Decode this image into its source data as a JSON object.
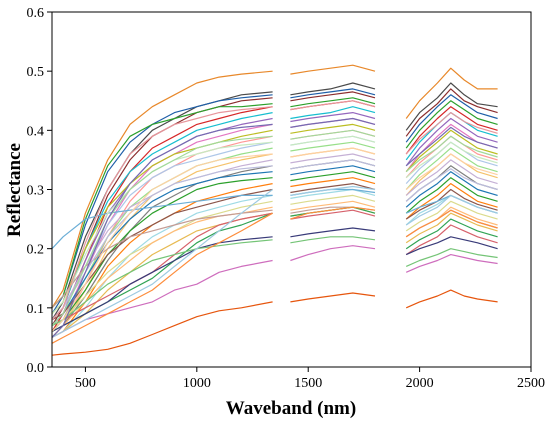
{
  "chart_data": {
    "type": "line",
    "title": "",
    "xlabel": "Waveband (nm)",
    "ylabel": "Reflectance",
    "xlim": [
      350,
      2500
    ],
    "ylim": [
      0.0,
      0.6
    ],
    "xticks": [
      500,
      1000,
      1500,
      2000,
      2500
    ],
    "yticks": [
      "0.0",
      "0.1",
      "0.2",
      "0.3",
      "0.4",
      "0.5",
      "0.6"
    ],
    "grid": false,
    "legend": "none",
    "x": [
      350,
      400,
      500,
      600,
      700,
      800,
      900,
      1000,
      1100,
      1200,
      1340,
      1420,
      1500,
      1600,
      1700,
      1800,
      1940,
      2000,
      2080,
      2140,
      2200,
      2260,
      2350
    ],
    "segments": [
      [
        350,
        1340
      ],
      [
        1420,
        1800
      ],
      [
        1940,
        2350
      ]
    ],
    "colors": [
      "#e8882a",
      "#4a4a4a",
      "#8b2d2d",
      "#1f5fa8",
      "#2ca02c",
      "#d62728",
      "#17becf",
      "#9467bd",
      "#e377c2",
      "#bcbd22",
      "#ff9896",
      "#aec7e8",
      "#98df8a",
      "#f5c26b",
      "#c5b0d5",
      "#7f7f7f",
      "#1f77b4",
      "#2ca02c",
      "#ff7f0e",
      "#8c564b",
      "#9edae5",
      "#dbdb8d",
      "#ffbb78",
      "#c49c94",
      "#e7ba52",
      "#6baed6",
      "#31a354",
      "#d6616b",
      "#ce6dbd",
      "#393b79",
      "#e6550d",
      "#74c476",
      "#fd8d3c",
      "#9ecae1",
      "#bcbddc",
      "#fdd0a2",
      "#c7e9c0",
      "#a1d99b",
      "#756bb1",
      "#e7969c"
    ],
    "series": [
      {
        "values": [
          0.1,
          0.13,
          0.26,
          0.35,
          0.41,
          0.44,
          0.46,
          0.48,
          0.49,
          0.495,
          0.5,
          0.495,
          0.5,
          0.505,
          0.51,
          0.5,
          0.42,
          0.45,
          0.48,
          0.505,
          0.485,
          0.47,
          0.47
        ]
      },
      {
        "values": [
          0.08,
          0.11,
          0.22,
          0.3,
          0.36,
          0.4,
          0.42,
          0.44,
          0.45,
          0.46,
          0.465,
          0.46,
          0.465,
          0.47,
          0.48,
          0.47,
          0.4,
          0.43,
          0.455,
          0.48,
          0.46,
          0.445,
          0.44
        ]
      },
      {
        "values": [
          0.07,
          0.1,
          0.2,
          0.29,
          0.35,
          0.39,
          0.41,
          0.43,
          0.44,
          0.45,
          0.455,
          0.45,
          0.455,
          0.46,
          0.465,
          0.455,
          0.39,
          0.42,
          0.445,
          0.47,
          0.45,
          0.44,
          0.43
        ]
      },
      {
        "values": [
          0.09,
          0.12,
          0.24,
          0.33,
          0.38,
          0.41,
          0.43,
          0.44,
          0.45,
          0.455,
          0.46,
          0.455,
          0.46,
          0.465,
          0.47,
          0.46,
          0.38,
          0.41,
          0.44,
          0.46,
          0.445,
          0.43,
          0.42
        ]
      },
      {
        "values": [
          0.1,
          0.12,
          0.25,
          0.34,
          0.39,
          0.41,
          0.42,
          0.43,
          0.44,
          0.44,
          0.445,
          0.44,
          0.445,
          0.45,
          0.455,
          0.445,
          0.37,
          0.4,
          0.43,
          0.45,
          0.435,
          0.42,
          0.41
        ]
      },
      {
        "values": [
          0.06,
          0.09,
          0.18,
          0.27,
          0.33,
          0.37,
          0.39,
          0.41,
          0.42,
          0.43,
          0.44,
          0.435,
          0.44,
          0.445,
          0.45,
          0.44,
          0.36,
          0.39,
          0.42,
          0.44,
          0.425,
          0.41,
          0.4
        ]
      },
      {
        "values": [
          0.08,
          0.1,
          0.2,
          0.28,
          0.33,
          0.36,
          0.38,
          0.4,
          0.41,
          0.42,
          0.43,
          0.42,
          0.425,
          0.43,
          0.44,
          0.43,
          0.35,
          0.38,
          0.41,
          0.43,
          0.415,
          0.4,
          0.39
        ]
      },
      {
        "values": [
          0.07,
          0.09,
          0.18,
          0.26,
          0.31,
          0.35,
          0.37,
          0.39,
          0.4,
          0.41,
          0.42,
          0.415,
          0.42,
          0.425,
          0.43,
          0.42,
          0.34,
          0.37,
          0.4,
          0.42,
          0.405,
          0.39,
          0.38
        ]
      },
      {
        "values": [
          0.06,
          0.08,
          0.16,
          0.24,
          0.3,
          0.34,
          0.36,
          0.38,
          0.39,
          0.4,
          0.41,
          0.405,
          0.41,
          0.415,
          0.42,
          0.41,
          0.33,
          0.36,
          0.39,
          0.41,
          0.395,
          0.38,
          0.37
        ]
      },
      {
        "values": [
          0.09,
          0.11,
          0.2,
          0.27,
          0.31,
          0.34,
          0.36,
          0.37,
          0.38,
          0.39,
          0.4,
          0.395,
          0.4,
          0.405,
          0.41,
          0.4,
          0.33,
          0.355,
          0.38,
          0.4,
          0.385,
          0.37,
          0.36
        ]
      },
      {
        "values": [
          0.05,
          0.07,
          0.14,
          0.22,
          0.28,
          0.32,
          0.34,
          0.36,
          0.37,
          0.38,
          0.39,
          0.385,
          0.39,
          0.395,
          0.4,
          0.39,
          0.32,
          0.345,
          0.37,
          0.39,
          0.375,
          0.36,
          0.35
        ]
      },
      {
        "values": [
          0.07,
          0.09,
          0.17,
          0.24,
          0.29,
          0.32,
          0.34,
          0.35,
          0.36,
          0.37,
          0.38,
          0.375,
          0.38,
          0.385,
          0.39,
          0.38,
          0.31,
          0.335,
          0.36,
          0.38,
          0.365,
          0.35,
          0.34
        ]
      },
      {
        "values": [
          0.06,
          0.08,
          0.15,
          0.22,
          0.27,
          0.3,
          0.32,
          0.34,
          0.35,
          0.36,
          0.37,
          0.365,
          0.37,
          0.375,
          0.38,
          0.37,
          0.3,
          0.325,
          0.35,
          0.37,
          0.355,
          0.34,
          0.33
        ]
      },
      {
        "values": [
          0.05,
          0.07,
          0.13,
          0.2,
          0.25,
          0.29,
          0.31,
          0.33,
          0.34,
          0.35,
          0.36,
          0.355,
          0.36,
          0.365,
          0.37,
          0.36,
          0.29,
          0.315,
          0.34,
          0.36,
          0.345,
          0.33,
          0.32
        ]
      },
      {
        "values": [
          0.08,
          0.1,
          0.17,
          0.23,
          0.27,
          0.29,
          0.31,
          0.32,
          0.33,
          0.34,
          0.35,
          0.345,
          0.35,
          0.355,
          0.36,
          0.35,
          0.29,
          0.31,
          0.33,
          0.35,
          0.335,
          0.32,
          0.31
        ]
      },
      {
        "values": [
          0.05,
          0.07,
          0.12,
          0.18,
          0.23,
          0.27,
          0.29,
          0.31,
          0.32,
          0.33,
          0.34,
          0.335,
          0.34,
          0.345,
          0.35,
          0.34,
          0.28,
          0.3,
          0.32,
          0.34,
          0.325,
          0.31,
          0.3
        ]
      },
      {
        "values": [
          0.07,
          0.09,
          0.15,
          0.21,
          0.25,
          0.28,
          0.3,
          0.31,
          0.32,
          0.325,
          0.33,
          0.325,
          0.33,
          0.335,
          0.34,
          0.33,
          0.27,
          0.29,
          0.31,
          0.33,
          0.315,
          0.3,
          0.29
        ]
      },
      {
        "values": [
          0.06,
          0.08,
          0.13,
          0.19,
          0.23,
          0.26,
          0.28,
          0.3,
          0.31,
          0.315,
          0.32,
          0.315,
          0.32,
          0.325,
          0.33,
          0.32,
          0.26,
          0.28,
          0.3,
          0.32,
          0.305,
          0.29,
          0.28
        ]
      },
      {
        "values": [
          0.05,
          0.06,
          0.11,
          0.17,
          0.21,
          0.24,
          0.26,
          0.28,
          0.29,
          0.3,
          0.31,
          0.305,
          0.31,
          0.315,
          0.32,
          0.31,
          0.25,
          0.27,
          0.29,
          0.31,
          0.295,
          0.28,
          0.27
        ]
      },
      {
        "values": [
          0.08,
          0.09,
          0.14,
          0.19,
          0.22,
          0.24,
          0.26,
          0.27,
          0.28,
          0.29,
          0.3,
          0.295,
          0.3,
          0.305,
          0.31,
          0.3,
          0.25,
          0.265,
          0.28,
          0.3,
          0.285,
          0.275,
          0.265
        ]
      },
      {
        "values": [
          0.05,
          0.06,
          0.1,
          0.15,
          0.19,
          0.22,
          0.24,
          0.26,
          0.27,
          0.28,
          0.29,
          0.285,
          0.29,
          0.295,
          0.3,
          0.29,
          0.24,
          0.26,
          0.275,
          0.29,
          0.28,
          0.27,
          0.26
        ]
      },
      {
        "values": [
          0.07,
          0.08,
          0.12,
          0.16,
          0.19,
          0.21,
          0.23,
          0.25,
          0.26,
          0.27,
          0.28,
          0.275,
          0.28,
          0.285,
          0.29,
          0.28,
          0.23,
          0.245,
          0.26,
          0.28,
          0.27,
          0.26,
          0.25
        ]
      },
      {
        "values": [
          0.06,
          0.07,
          0.11,
          0.15,
          0.18,
          0.21,
          0.23,
          0.245,
          0.255,
          0.26,
          0.27,
          0.265,
          0.27,
          0.275,
          0.28,
          0.27,
          0.22,
          0.235,
          0.25,
          0.27,
          0.26,
          0.25,
          0.24
        ]
      },
      {
        "values": [
          0.1,
          0.12,
          0.17,
          0.2,
          0.22,
          0.23,
          0.24,
          0.25,
          0.255,
          0.26,
          0.265,
          0.26,
          0.265,
          0.27,
          0.27,
          0.265,
          0.22,
          0.235,
          0.25,
          0.265,
          0.255,
          0.245,
          0.235
        ]
      },
      {
        "values": [
          0.05,
          0.06,
          0.09,
          0.13,
          0.16,
          0.19,
          0.21,
          0.23,
          0.24,
          0.25,
          0.26,
          0.255,
          0.26,
          0.265,
          0.27,
          0.26,
          0.21,
          0.225,
          0.24,
          0.26,
          0.25,
          0.24,
          0.23
        ]
      },
      {
        "values": [
          0.2,
          0.22,
          0.25,
          0.26,
          0.265,
          0.27,
          0.275,
          0.28,
          0.285,
          0.29,
          0.29,
          0.29,
          0.295,
          0.3,
          0.3,
          0.295,
          0.26,
          0.27,
          0.28,
          0.29,
          0.28,
          0.27,
          0.26
        ]
      },
      {
        "values": [
          0.06,
          0.07,
          0.09,
          0.11,
          0.13,
          0.15,
          0.18,
          0.21,
          0.23,
          0.24,
          0.26,
          0.255,
          0.26,
          0.265,
          0.27,
          0.26,
          0.2,
          0.215,
          0.23,
          0.25,
          0.24,
          0.23,
          0.22
        ]
      },
      {
        "values": [
          0.07,
          0.08,
          0.1,
          0.12,
          0.14,
          0.16,
          0.19,
          0.22,
          0.24,
          0.25,
          0.26,
          0.25,
          0.255,
          0.26,
          0.265,
          0.255,
          0.19,
          0.205,
          0.22,
          0.24,
          0.23,
          0.22,
          0.21
        ]
      },
      {
        "values": [
          0.05,
          0.06,
          0.08,
          0.09,
          0.1,
          0.11,
          0.13,
          0.14,
          0.16,
          0.17,
          0.18,
          0.18,
          0.19,
          0.2,
          0.205,
          0.2,
          0.16,
          0.17,
          0.18,
          0.19,
          0.185,
          0.18,
          0.175
        ]
      },
      {
        "values": [
          0.06,
          0.07,
          0.09,
          0.11,
          0.14,
          0.16,
          0.18,
          0.2,
          0.21,
          0.215,
          0.22,
          0.22,
          0.225,
          0.23,
          0.235,
          0.23,
          0.19,
          0.2,
          0.21,
          0.22,
          0.215,
          0.21,
          0.2
        ]
      },
      {
        "values": [
          0.02,
          0.022,
          0.025,
          0.03,
          0.04,
          0.055,
          0.07,
          0.085,
          0.095,
          0.1,
          0.11,
          0.11,
          0.115,
          0.12,
          0.125,
          0.12,
          0.1,
          0.11,
          0.12,
          0.13,
          0.12,
          0.115,
          0.11
        ]
      },
      {
        "values": [
          0.07,
          0.08,
          0.11,
          0.14,
          0.16,
          0.18,
          0.19,
          0.2,
          0.205,
          0.21,
          0.215,
          0.21,
          0.215,
          0.22,
          0.22,
          0.215,
          0.17,
          0.18,
          0.19,
          0.2,
          0.195,
          0.19,
          0.185
        ]
      },
      {
        "values": [
          0.04,
          0.05,
          0.07,
          0.09,
          0.11,
          0.13,
          0.16,
          0.19,
          0.21,
          0.23,
          0.26,
          0.25,
          0.26,
          0.265,
          0.27,
          0.265,
          0.22,
          0.235,
          0.25,
          0.265,
          0.255,
          0.245,
          0.235
        ]
      },
      {
        "values": [
          0.05,
          0.06,
          0.08,
          0.1,
          0.12,
          0.14,
          0.17,
          0.2,
          0.23,
          0.26,
          0.3,
          0.29,
          0.295,
          0.3,
          0.305,
          0.3,
          0.24,
          0.255,
          0.27,
          0.29,
          0.28,
          0.27,
          0.26
        ]
      },
      {
        "values": [
          0.08,
          0.1,
          0.16,
          0.22,
          0.26,
          0.29,
          0.31,
          0.32,
          0.33,
          0.335,
          0.34,
          0.335,
          0.34,
          0.345,
          0.35,
          0.34,
          0.28,
          0.3,
          0.32,
          0.335,
          0.32,
          0.31,
          0.3
        ]
      },
      {
        "values": [
          0.06,
          0.08,
          0.14,
          0.21,
          0.26,
          0.3,
          0.32,
          0.34,
          0.35,
          0.355,
          0.36,
          0.355,
          0.36,
          0.365,
          0.37,
          0.36,
          0.3,
          0.32,
          0.34,
          0.36,
          0.345,
          0.335,
          0.325
        ]
      },
      {
        "values": [
          0.09,
          0.11,
          0.19,
          0.26,
          0.3,
          0.33,
          0.35,
          0.36,
          0.37,
          0.375,
          0.38,
          0.375,
          0.38,
          0.385,
          0.39,
          0.38,
          0.32,
          0.34,
          0.36,
          0.38,
          0.365,
          0.355,
          0.345
        ]
      },
      {
        "values": [
          0.07,
          0.09,
          0.17,
          0.25,
          0.3,
          0.33,
          0.35,
          0.37,
          0.38,
          0.385,
          0.39,
          0.385,
          0.39,
          0.395,
          0.4,
          0.39,
          0.33,
          0.35,
          0.37,
          0.39,
          0.375,
          0.365,
          0.355
        ]
      },
      {
        "values": [
          0.05,
          0.07,
          0.16,
          0.25,
          0.31,
          0.35,
          0.37,
          0.39,
          0.4,
          0.405,
          0.41,
          0.405,
          0.41,
          0.415,
          0.42,
          0.41,
          0.34,
          0.36,
          0.385,
          0.405,
          0.39,
          0.38,
          0.37
        ]
      },
      {
        "values": [
          0.08,
          0.1,
          0.21,
          0.3,
          0.36,
          0.39,
          0.41,
          0.42,
          0.43,
          0.435,
          0.44,
          0.435,
          0.44,
          0.445,
          0.45,
          0.44,
          0.36,
          0.385,
          0.41,
          0.43,
          0.415,
          0.405,
          0.395
        ]
      }
    ]
  }
}
